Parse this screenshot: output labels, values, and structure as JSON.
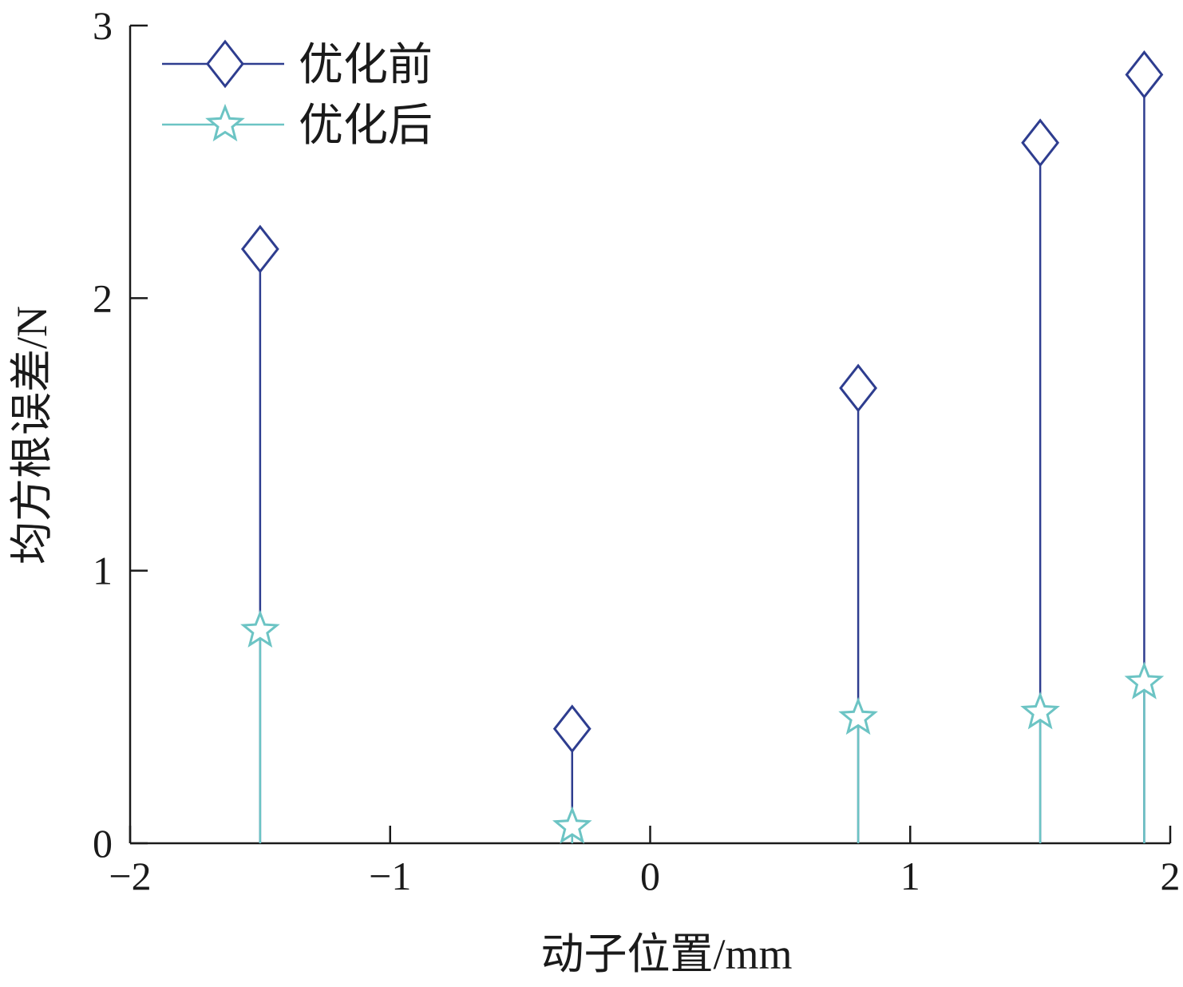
{
  "chart_data": {
    "type": "stem",
    "xlabel": "动子位置/mm",
    "ylabel": "均方根误差/N",
    "xlim": [
      -2,
      2
    ],
    "ylim": [
      0,
      3
    ],
    "xticks": [
      -2,
      -1,
      0,
      1,
      2
    ],
    "xtick_labels": [
      "−2",
      "−1",
      "0",
      "1",
      "2"
    ],
    "yticks": [
      0,
      1,
      2,
      3
    ],
    "ytick_labels": [
      "0",
      "1",
      "2",
      "3"
    ],
    "grid": false,
    "legend_position": "top-left",
    "x": [
      -1.5,
      -0.3,
      0.8,
      1.5,
      1.9
    ],
    "series": [
      {
        "name": "优化前",
        "marker": "diamond",
        "color": "#2e3d8f",
        "values": [
          2.18,
          0.42,
          1.67,
          2.57,
          2.82
        ]
      },
      {
        "name": "优化后",
        "marker": "star",
        "color": "#6cc4c4",
        "values": [
          0.78,
          0.06,
          0.46,
          0.48,
          0.59
        ]
      }
    ]
  }
}
